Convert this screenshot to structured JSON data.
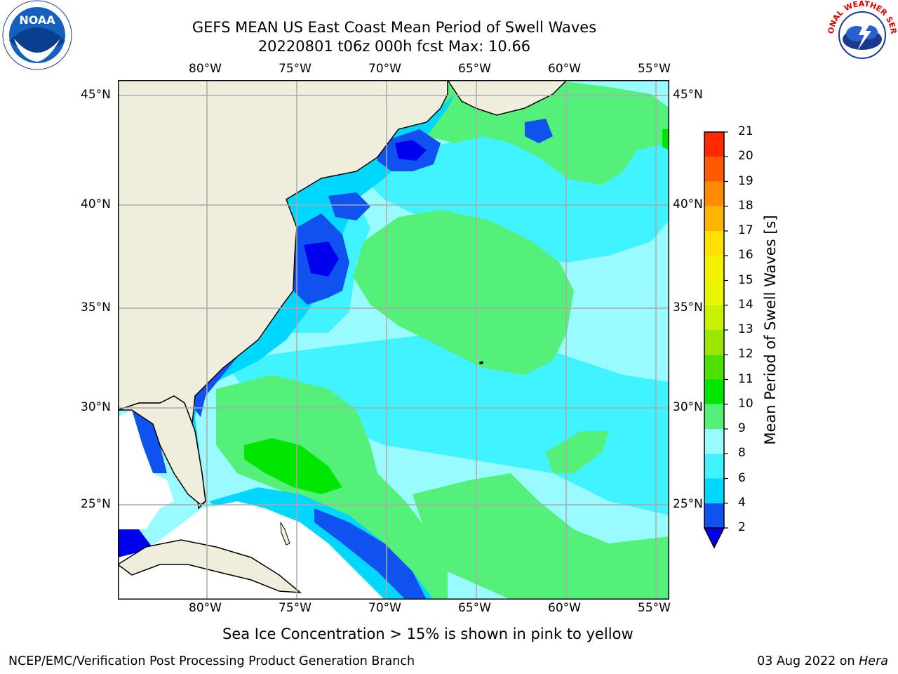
{
  "title": {
    "line1": "GEFS MEAN US East Coast Mean Period of Swell Waves",
    "line2": "20220801 t06z 000h fcst   Max: 10.66"
  },
  "axes": {
    "lon_labels": [
      "80°W",
      "75°W",
      "70°W",
      "65°W",
      "60°W",
      "55°W"
    ],
    "lat_labels": [
      "45°N",
      "40°N",
      "35°N",
      "30°N",
      "25°N"
    ]
  },
  "colorbar": {
    "title": "Mean Period of Swell Waves [s]",
    "levels": [
      "2",
      "4",
      "6",
      "8",
      "9",
      "10",
      "11",
      "12",
      "13",
      "14",
      "15",
      "16",
      "17",
      "18",
      "19",
      "20",
      "21"
    ],
    "colors": [
      "#0f52f0",
      "#00d7ff",
      "#40f3ff",
      "#99fbff",
      "#55f07a",
      "#00e600",
      "#4ee000",
      "#9ae600",
      "#c8f000",
      "#e8f500",
      "#f5f000",
      "#ffe000",
      "#ffb400",
      "#ff8c00",
      "#ff5a00",
      "#ff2a00",
      "#ff0000"
    ],
    "under_color": "#0000ee"
  },
  "note": "Sea Ice Concentration > 15% is shown in pink to yellow",
  "footer": {
    "left": "NCEP/EMC/Verification Post Processing Product Generation Branch",
    "right_date": "03 Aug 2022 on ",
    "right_host": "Hera"
  },
  "logos": {
    "noaa": "NOAA",
    "nws": "NATIONAL WEATHER SERVICE"
  },
  "map_colors": {
    "land": "#efeedd",
    "ocean_low": "#99fbff",
    "ocean_mid": "#40f3ff",
    "swell_green": "#55f07a",
    "swell_bright": "#00e600",
    "near_coast": "#00d7ff",
    "blue": "#0f52f0",
    "deep_blue": "#0000ee"
  }
}
